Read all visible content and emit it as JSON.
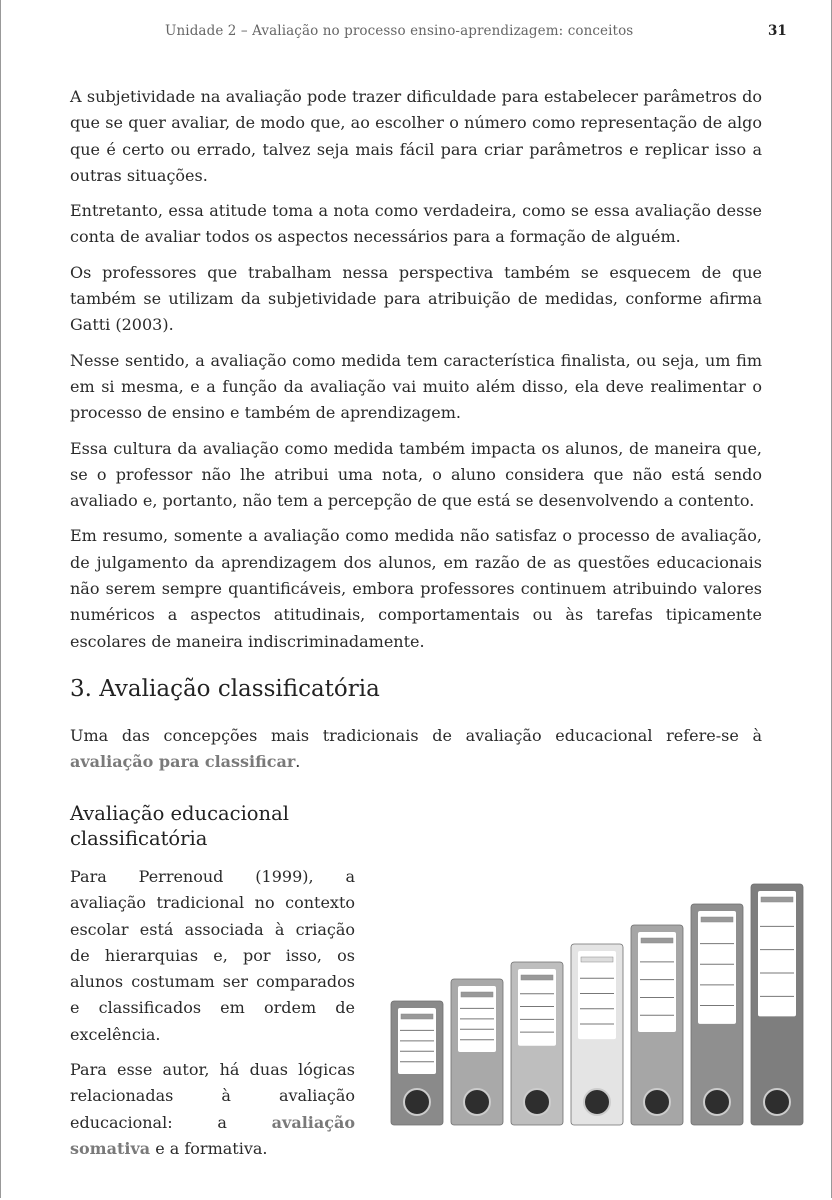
{
  "header": {
    "running_title": "Unidade 2 – Avaliação no processo ensino-aprendizagem: conceitos",
    "page_number": "31"
  },
  "paragraphs": [
    "A subjetividade na avaliação pode trazer dificuldade para estabelecer parâmetros do que se quer avaliar, de modo que, ao escolher o número como representação de algo que é certo ou errado, talvez seja mais fácil para criar parâmetros e replicar isso a outras situações.",
    "Entretanto, essa atitude toma a nota como verdadeira, como se essa avaliação desse conta de avaliar todos os aspectos necessários para a formação de alguém.",
    "Os professores que trabalham nessa perspectiva também se esquecem de que também se utilizam da subjetividade para atribuição de medidas, conforme afirma Gatti (2003).",
    "Nesse sentido, a avaliação como medida tem característica finalista, ou seja, um fim em si mesma, e a função da avaliação vai muito além disso, ela deve realimentar o processo de ensino e também de aprendizagem.",
    "Essa cultura da avaliação como medida também impacta os alunos, de maneira que, se o professor não lhe atribui uma nota, o aluno considera que não está sendo avaliado e, portanto, não tem a percepção de que está se desenvolvendo a contento.",
    "Em resumo, somente a avaliação como medida não satisfaz o processo de avaliação, de julgamento da aprendizagem dos alunos, em razão de as questões educacionais não serem sempre quantificáveis, embora professores continuem atribuindo valores numéricos a aspectos atitudinais, comportamentais ou às tarefas tipicamente escolares de maneira indiscriminadamente."
  ],
  "section": {
    "heading": "3. Avaliação classificatória",
    "intro_before": "Uma das concepções mais tradicionais de avaliação educacional refere-se à ",
    "intro_highlight": "avaliação para classificar",
    "intro_after": "."
  },
  "subsection": {
    "heading": "Avaliação educacional classificatória",
    "p1": "Para Perrenoud (1999), a avaliação tradicional no contexto escolar está associada à criação de hierarquias e, por isso, os alunos costumam ser comparados e classificados em ordem de excelência.",
    "p2_before": "Para esse autor, há duas lógicas relacionadas à avaliação educacional: a ",
    "p2_highlight": "avaliação somativa",
    "p2_after": " e a formativa."
  },
  "illustration": {
    "subject": "binders-of-increasing-height",
    "binder_colors": [
      "#8a8a8a",
      "#a9a9a9",
      "#bebebe",
      "#e4e4e4",
      "#a6a6a6",
      "#8f8f8f",
      "#7e7e7e"
    ]
  }
}
